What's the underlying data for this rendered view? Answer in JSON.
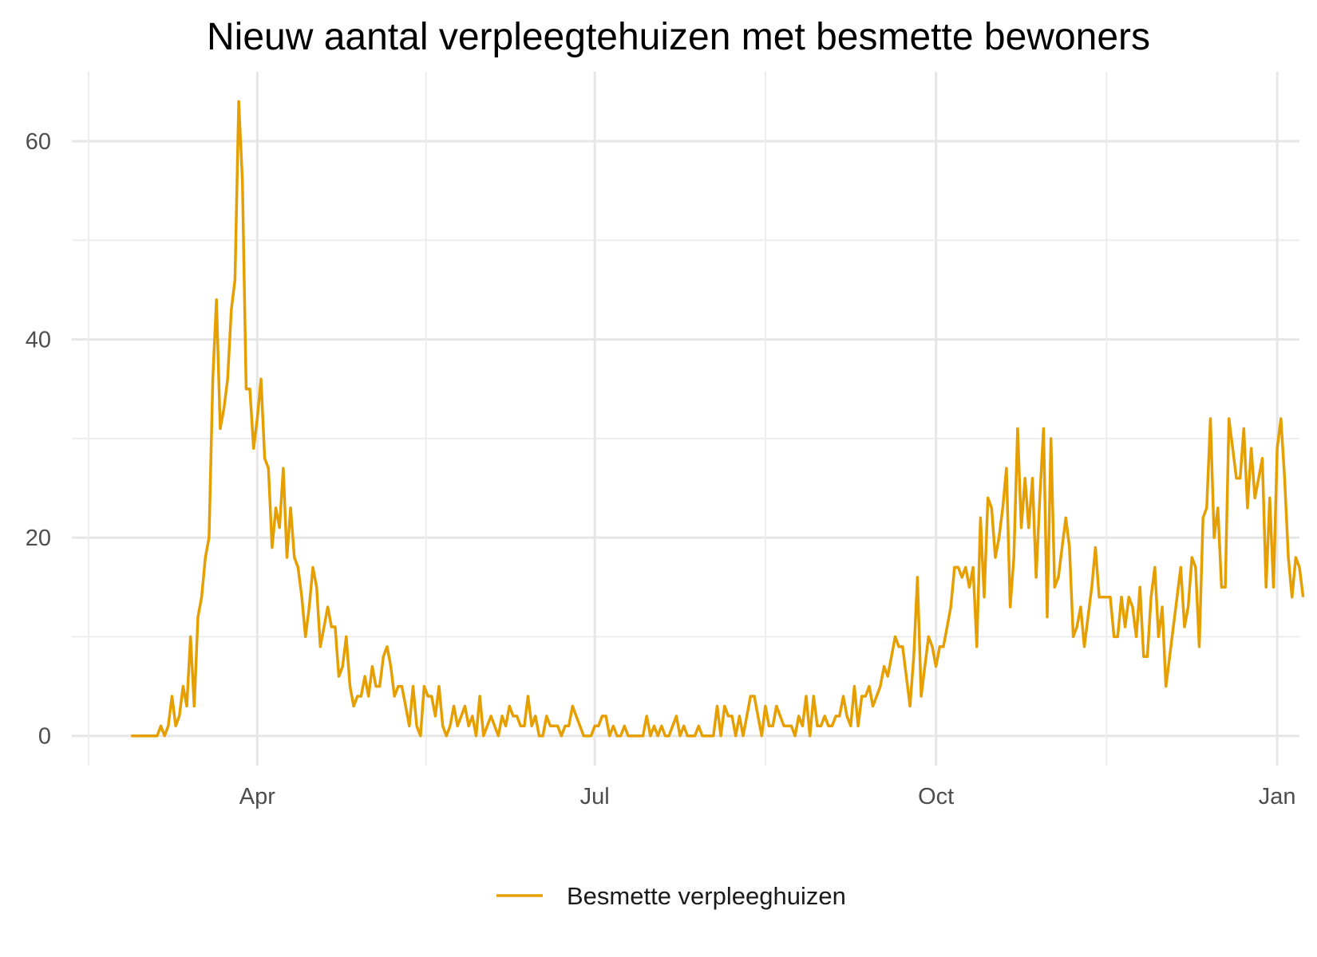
{
  "chart_data": {
    "type": "line",
    "title": "Nieuw aantal verpleegtehuizen met besmette bewoners",
    "xlabel": "",
    "ylabel": "",
    "x_tick_labels": [
      "Apr",
      "Jul",
      "Oct",
      "Jan"
    ],
    "y_tick_labels": [
      "0",
      "20",
      "40",
      "60"
    ],
    "y_ticks": [
      0,
      20,
      40,
      60
    ],
    "ylim": [
      -3,
      67
    ],
    "xlim": [
      "2020-02-11",
      "2021-01-07"
    ],
    "x_ticks": [
      "2020-04-01",
      "2020-07-01",
      "2020-10-01",
      "2021-01-01"
    ],
    "grid": true,
    "legend_position": "bottom",
    "color": "#E69F00",
    "series": [
      {
        "name": "Besmette verpleeghuizen",
        "start_date": "2020-02-27",
        "values": [
          0,
          0,
          0,
          0,
          0,
          0,
          0,
          0,
          1,
          0,
          1,
          4,
          1,
          2,
          5,
          3,
          10,
          3,
          12,
          14,
          18,
          20,
          36,
          44,
          31,
          33,
          36,
          43,
          46,
          64,
          56,
          35,
          35,
          29,
          32,
          36,
          28,
          27,
          19,
          23,
          21,
          27,
          18,
          23,
          18,
          17,
          14,
          10,
          13,
          17,
          15,
          9,
          11,
          13,
          11,
          11,
          6,
          7,
          10,
          5,
          3,
          4,
          4,
          6,
          4,
          7,
          5,
          5,
          8,
          9,
          7,
          4,
          5,
          5,
          3,
          1,
          5,
          1,
          0,
          5,
          4,
          4,
          2,
          5,
          1,
          0,
          1,
          3,
          1,
          2,
          3,
          1,
          2,
          0,
          4,
          0,
          1,
          2,
          1,
          0,
          2,
          1,
          3,
          2,
          2,
          1,
          1,
          4,
          1,
          2,
          0,
          0,
          2,
          1,
          1,
          1,
          0,
          1,
          1,
          3,
          2,
          1,
          0,
          0,
          0,
          1,
          1,
          2,
          2,
          0,
          1,
          0,
          0,
          1,
          0,
          0,
          0,
          0,
          0,
          2,
          0,
          1,
          0,
          1,
          0,
          0,
          1,
          2,
          0,
          1,
          0,
          0,
          0,
          1,
          0,
          0,
          0,
          0,
          3,
          0,
          3,
          2,
          2,
          0,
          2,
          0,
          2,
          4,
          4,
          2,
          0,
          3,
          1,
          1,
          3,
          2,
          1,
          1,
          1,
          0,
          2,
          1,
          4,
          0,
          4,
          1,
          1,
          2,
          1,
          1,
          2,
          2,
          4,
          2,
          1,
          5,
          1,
          4,
          4,
          5,
          3,
          4,
          5,
          7,
          6,
          8,
          10,
          9,
          9,
          6,
          3,
          8,
          16,
          4,
          7,
          10,
          9,
          7,
          9,
          9,
          11,
          13,
          17,
          17,
          16,
          17,
          15,
          17,
          9,
          22,
          14,
          24,
          23,
          18,
          20,
          23,
          27,
          13,
          18,
          31,
          21,
          26,
          21,
          26,
          16,
          24,
          31,
          12,
          30,
          15,
          16,
          19,
          22,
          19,
          10,
          11,
          13,
          9,
          12,
          15,
          19,
          14,
          14,
          14,
          14,
          10,
          10,
          14,
          11,
          14,
          13,
          10,
          15,
          8,
          8,
          14,
          17,
          10,
          13,
          5,
          8,
          11,
          14,
          17,
          11,
          13,
          18,
          17,
          9,
          22,
          23,
          32,
          20,
          23,
          15,
          15,
          32,
          29,
          26,
          26,
          31,
          23,
          29,
          24,
          26,
          28,
          15,
          24,
          15,
          29,
          32,
          26,
          18,
          14,
          18,
          17,
          14
        ]
      }
    ]
  }
}
